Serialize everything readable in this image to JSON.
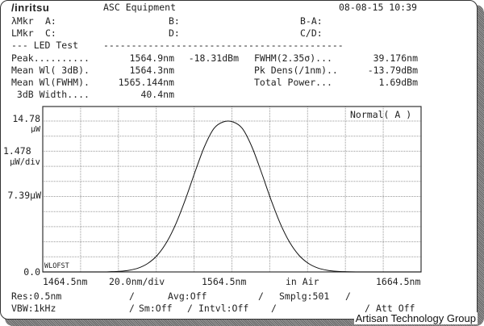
{
  "header": {
    "brand": "/inritsu",
    "title": "ASC Equipment",
    "datetime": "08-08-15 10:39"
  },
  "markers": {
    "lmkr_wl": "λMkr",
    "a": "A:",
    "b": "B:",
    "ba": "B-A:",
    "lmkr_lvl": "LMkr",
    "c": "C:",
    "d": "D:",
    "cd": "C/D:"
  },
  "section": {
    "title": "--- LED Test",
    "rule": "-------------------------------------------"
  },
  "results": {
    "peak_label": "Peak..........",
    "peak_wl": "1564.9nm",
    "peak_lvl": "-18.31dBm",
    "fwhm_label": "FWHM(2.35σ)...",
    "fwhm_val": "39.176nm",
    "mean3db_label": "Mean Wl( 3dB).",
    "mean3db_val": "1564.3nm",
    "pkdens_label": "Pk Dens(/1nm)..",
    "pkdens_val": "-13.79dBm",
    "meanfwhm_label": "Mean Wl(FWHM).",
    "meanfwhm_val": "1565.144nm",
    "total_label": "Total Power...",
    "total_val": "1.69dBm",
    "width3db_label": " 3dB Width....",
    "width3db_val": "40.4nm"
  },
  "chart_data": {
    "type": "line",
    "y_top_label": "14.78",
    "y_top_unit": "μW",
    "y_div_label": "1.478",
    "y_div_unit": "μW/div",
    "y_mid_label": "7.39μW",
    "y_bottom_label": "0.0",
    "x_start": "1464.5nm",
    "x_div": "20.0nm/div",
    "x_center": "1564.5nm",
    "x_medium": "in Air",
    "x_stop": "1664.5nm",
    "trace_label": "Normal( A )",
    "offset_label": "WLOFST",
    "xlim": [
      1464.5,
      1664.5
    ],
    "ylim": [
      0,
      14.78
    ],
    "grid": true,
    "x": [
      1460,
      1495,
      1500,
      1505,
      1510,
      1515,
      1520,
      1525,
      1530,
      1535,
      1540,
      1545,
      1550,
      1555,
      1560,
      1565,
      1570,
      1575,
      1580,
      1585,
      1590,
      1595,
      1600,
      1605,
      1610,
      1615,
      1620,
      1625,
      1630,
      1635,
      1670
    ],
    "y": [
      0,
      0,
      0.02,
      0.06,
      0.16,
      0.38,
      0.83,
      1.62,
      2.91,
      4.77,
      7.15,
      9.8,
      12.28,
      14.05,
      14.7,
      14.7,
      14.05,
      12.28,
      9.8,
      7.15,
      4.77,
      2.91,
      1.62,
      0.83,
      0.38,
      0.16,
      0.06,
      0.02,
      0,
      0,
      0
    ]
  },
  "footer": {
    "res": "Res:0.5nm",
    "avg": "Avg:Off",
    "smplg": "Smplg:501",
    "vbw": "VBW:1kHz",
    "sm": "Sm:Off",
    "intvl": "Intvl:Off",
    "att": "Att Off",
    "slash": "/"
  },
  "watermark": "Artisan Technology Group"
}
